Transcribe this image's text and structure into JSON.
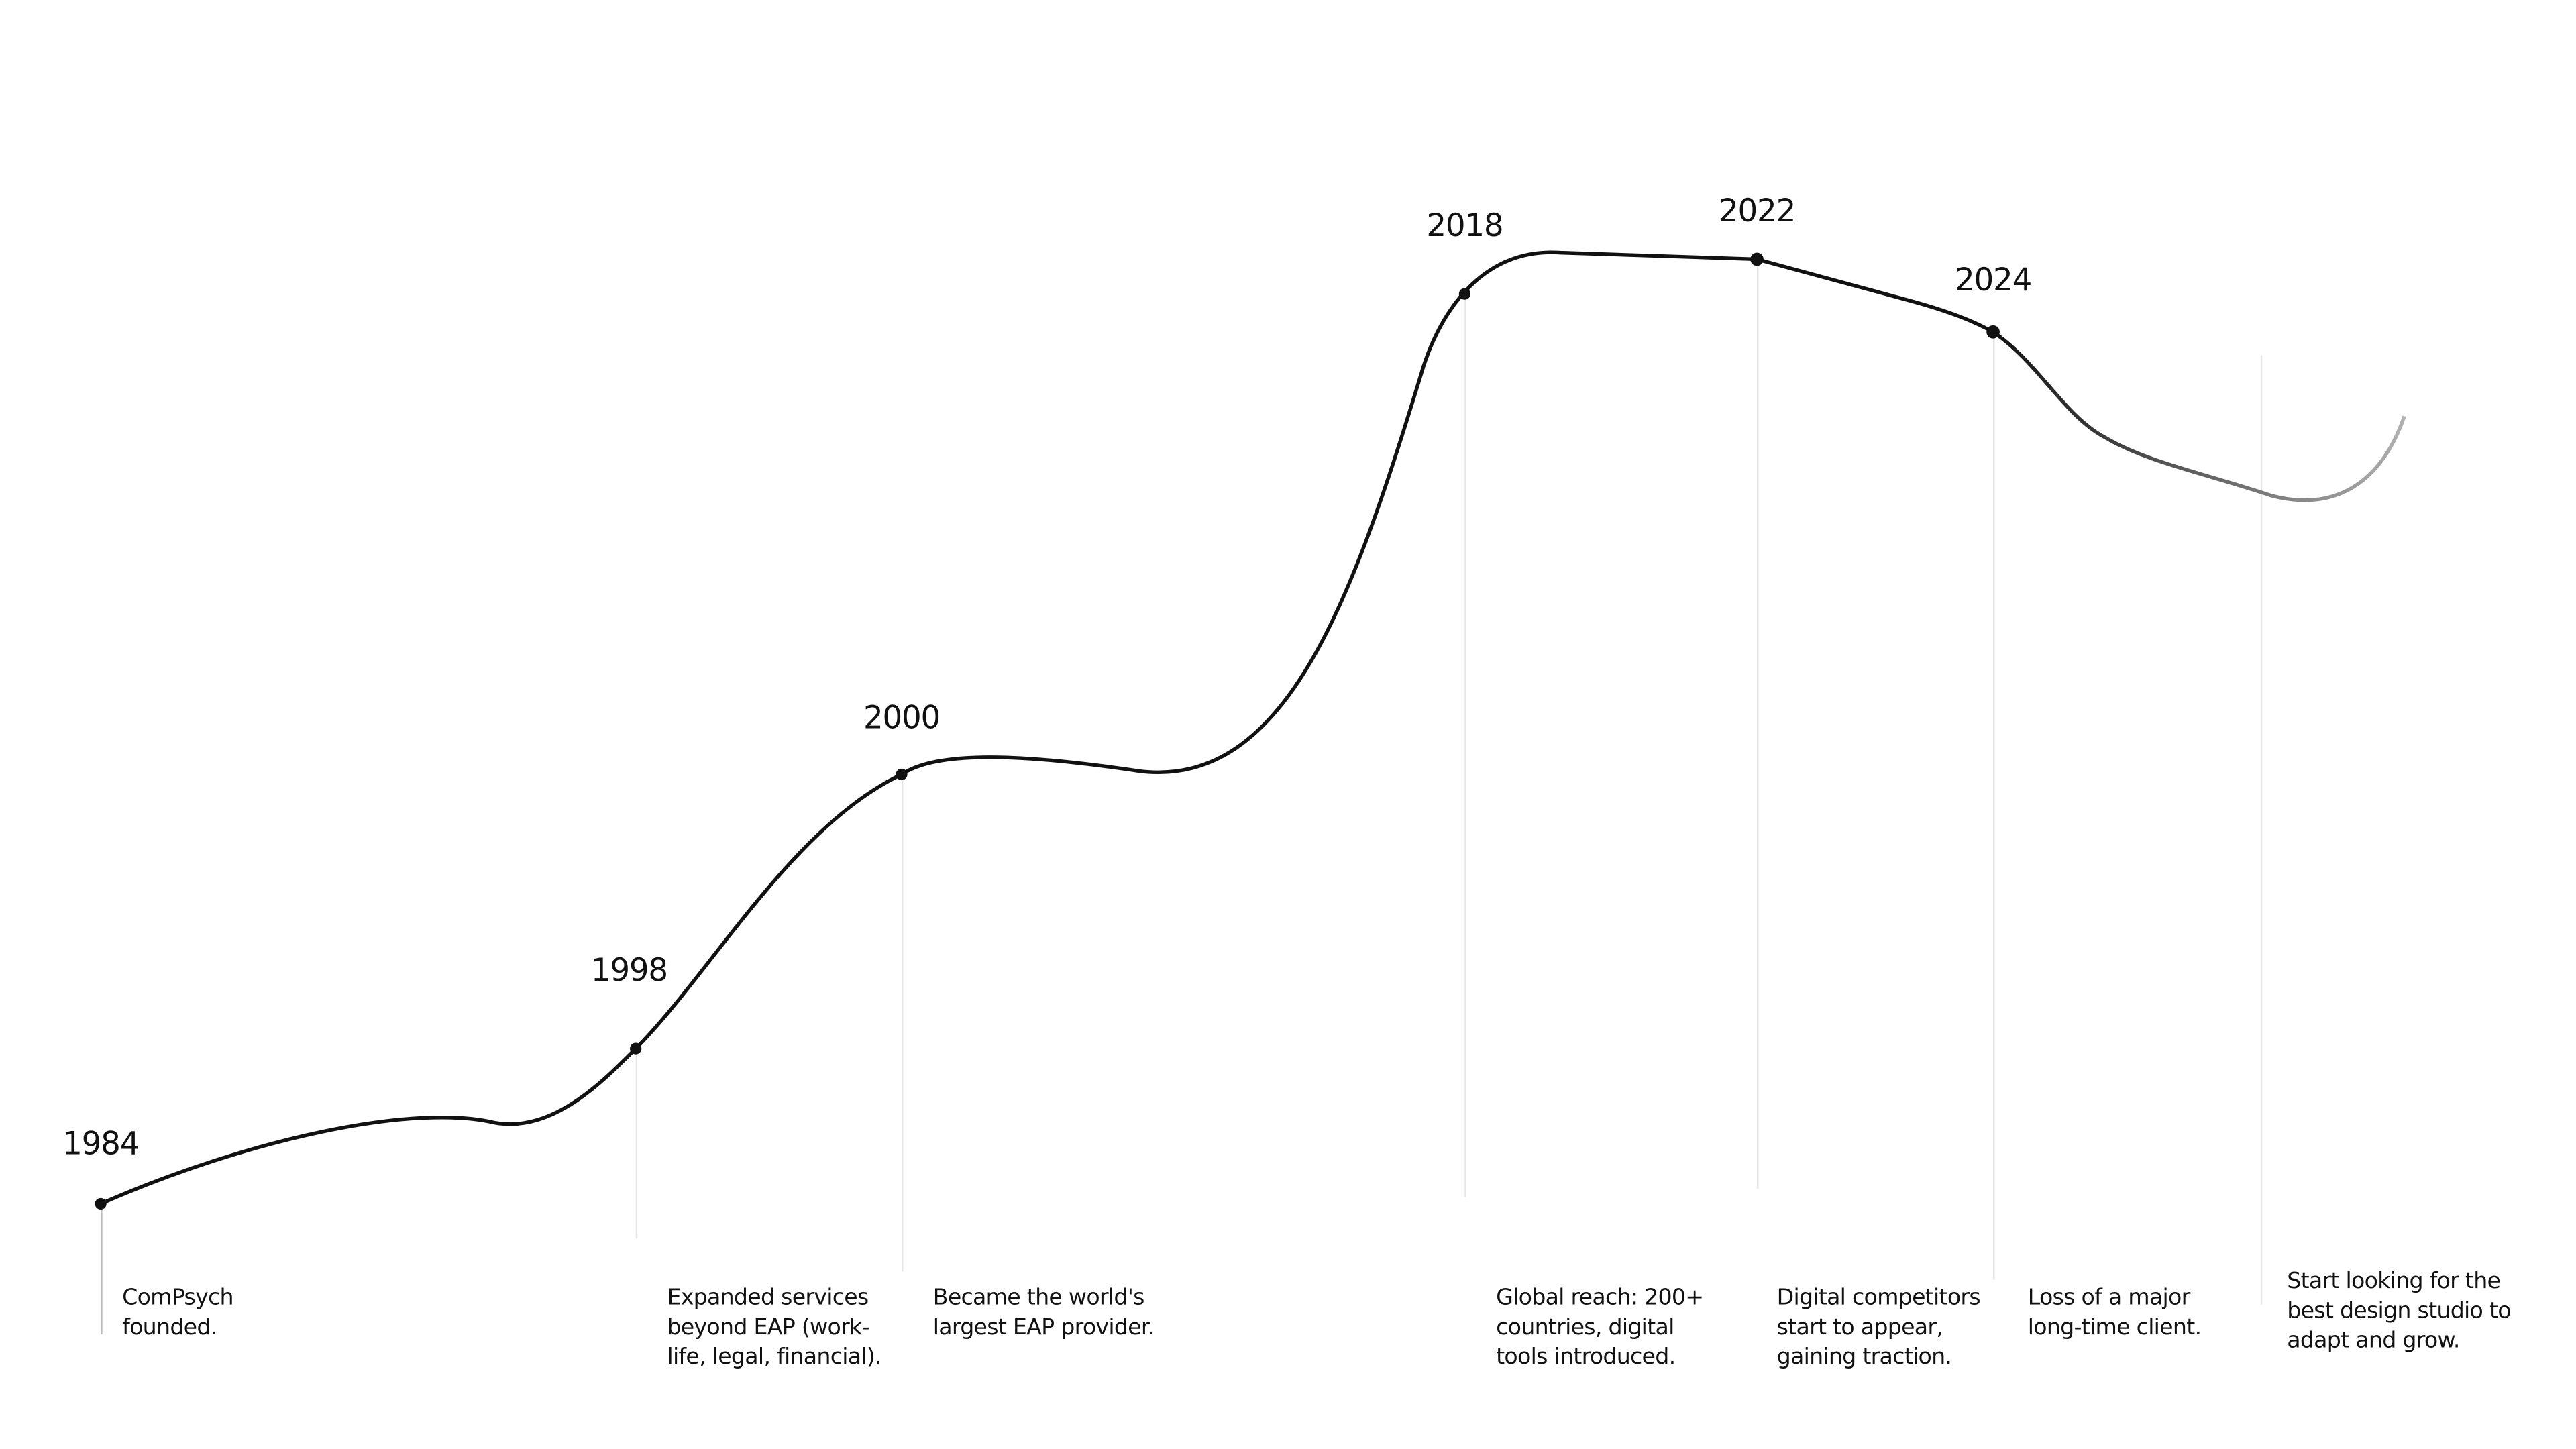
{
  "milestones": [
    {
      "year": "1984",
      "description": [
        "ComPsych",
        "founded."
      ]
    },
    {
      "year": "1998",
      "description": [
        "Expanded services",
        "beyond EAP (work-",
        "life, legal, financial)."
      ]
    },
    {
      "year": "2000",
      "description": [
        "Became the world's",
        "largest EAP provider."
      ]
    },
    {
      "year": "2018",
      "description": [
        "Global reach: 200+",
        "countries, digital",
        "tools introduced."
      ]
    },
    {
      "year": "2022",
      "description": [
        "Digital competitors",
        "start to appear,",
        "gaining traction."
      ]
    },
    {
      "year": "2024",
      "description": [
        "Loss of a major",
        "long-time client."
      ]
    },
    {
      "description": [
        "Start looking for the",
        "best design studio to",
        "adapt and grow."
      ]
    }
  ]
}
